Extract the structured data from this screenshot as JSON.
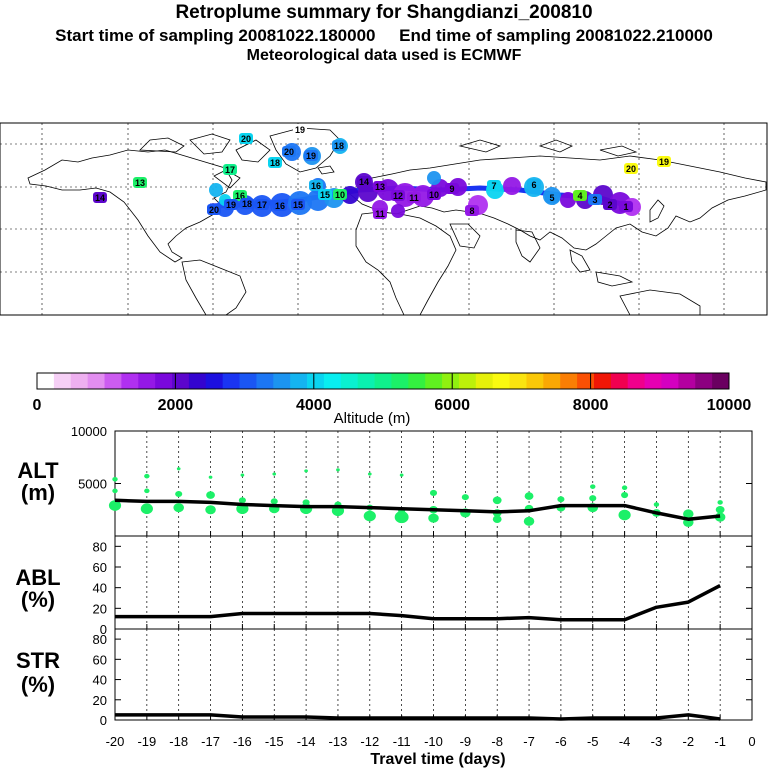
{
  "header": {
    "title": "Retroplume summary for Shangdianzi_200810",
    "sampling_line": "Start time of sampling 20081022.180000     End time of sampling 20081022.210000",
    "met_line": "Meteorological data used is ECMWF"
  },
  "colorbar": {
    "label": "Altitude (m)",
    "ticks": [
      "0",
      "2000",
      "4000",
      "6000",
      "8000",
      "10000"
    ],
    "colors": [
      "#ffffff",
      "#f6d0f6",
      "#eeb0f0",
      "#e28ef0",
      "#cc5cf0",
      "#b030f0",
      "#9418e6",
      "#7a08dc",
      "#5c06cc",
      "#3404d0",
      "#1c10e0",
      "#1a34f2",
      "#1a56f4",
      "#1c76f4",
      "#1c94f0",
      "#14b4f0",
      "#0ad4f0",
      "#08eef0",
      "#0af0d0",
      "#0af0b0",
      "#10f08c",
      "#1cf068",
      "#34f040",
      "#60f020",
      "#90f010",
      "#bcf00a",
      "#e6f00a",
      "#fafa10",
      "#fae410",
      "#fac808",
      "#faa804",
      "#fa7e04",
      "#fa5004",
      "#f01606",
      "#f00050",
      "#f0008c",
      "#e600b2",
      "#d400c0",
      "#b400a0",
      "#8c0080",
      "#6a0060"
    ]
  },
  "map": {
    "labels": [
      {
        "t": "20",
        "c": "#0ad4f0"
      },
      {
        "t": "19",
        "c": "#ffffff"
      },
      {
        "t": "18",
        "c": "#0ad4f0"
      },
      {
        "t": "17",
        "c": "#10f08c"
      },
      {
        "t": "16",
        "c": "#1cf068"
      },
      {
        "t": "20",
        "c": "#1a56f4"
      },
      {
        "t": "19",
        "c": "#1a56f4"
      },
      {
        "t": "18",
        "c": "#1a56f4"
      },
      {
        "t": "17",
        "c": "#1a56f4"
      },
      {
        "t": "16",
        "c": "#1a56f4"
      },
      {
        "t": "15",
        "c": "#1a56f4"
      },
      {
        "t": "20",
        "c": "#1c76f4"
      },
      {
        "t": "19",
        "c": "#1c76f4"
      },
      {
        "t": "18",
        "c": "#1c94f0"
      },
      {
        "t": "16",
        "c": "#14b4f0"
      },
      {
        "t": "15",
        "c": "#0ad4f0"
      },
      {
        "t": "14",
        "c": "#5c06cc"
      },
      {
        "t": "13",
        "c": "#7a08dc"
      },
      {
        "t": "12",
        "c": "#7a08dc"
      },
      {
        "t": "11",
        "c": "#9418e6"
      },
      {
        "t": "10",
        "c": "#7a08dc"
      },
      {
        "t": "9",
        "c": "#7a08dc"
      },
      {
        "t": "8",
        "c": "#9418e6"
      },
      {
        "t": "7",
        "c": "#0ad4f0"
      },
      {
        "t": "6",
        "c": "#14b4f0"
      },
      {
        "t": "5",
        "c": "#1c94f0"
      },
      {
        "t": "4",
        "c": "#60f020"
      },
      {
        "t": "3",
        "c": "#1c76f4"
      },
      {
        "t": "2",
        "c": "#5c06cc"
      },
      {
        "t": "1",
        "c": "#7a08dc"
      },
      {
        "t": "20",
        "c": "#fafa10"
      },
      {
        "t": "19",
        "c": "#fafa10"
      },
      {
        "t": "10",
        "c": "#1cf068"
      },
      {
        "t": "11",
        "c": "#9418e6"
      },
      {
        "t": "13",
        "c": "#1cf068"
      },
      {
        "t": "14",
        "c": "#5c06cc"
      }
    ]
  },
  "chart_data": [
    {
      "type": "line",
      "panel": "ALT",
      "ylabel": "ALT\n(m)",
      "ylim": [
        0,
        10000
      ],
      "yticks": [
        "10000",
        "5000"
      ],
      "x": [
        -20,
        -19,
        -18,
        -17,
        -16,
        -15,
        -14,
        -13,
        -12,
        -11,
        -10,
        -9,
        -8,
        -7,
        -6,
        -5,
        -4,
        -3,
        -2,
        -1
      ],
      "series": [
        {
          "name": "mean altitude",
          "values": [
            3400,
            3300,
            3300,
            3200,
            3000,
            2900,
            2800,
            2800,
            2700,
            2600,
            2500,
            2400,
            2300,
            2400,
            2900,
            2900,
            2900,
            2200,
            1600,
            1900
          ]
        }
      ],
      "scatter": [
        {
          "x": -20,
          "y": 5400,
          "s": 2
        },
        {
          "x": -20,
          "y": 4300,
          "s": 2
        },
        {
          "x": -20,
          "y": 2900,
          "s": 6
        },
        {
          "x": -19,
          "y": 5700,
          "s": 2
        },
        {
          "x": -19,
          "y": 4300,
          "s": 2
        },
        {
          "x": -19,
          "y": 2600,
          "s": 6
        },
        {
          "x": -18,
          "y": 6400,
          "s": 1
        },
        {
          "x": -18,
          "y": 4000,
          "s": 3
        },
        {
          "x": -18,
          "y": 2700,
          "s": 5
        },
        {
          "x": -17,
          "y": 5600,
          "s": 1
        },
        {
          "x": -17,
          "y": 3900,
          "s": 4
        },
        {
          "x": -17,
          "y": 2500,
          "s": 5
        },
        {
          "x": -16,
          "y": 5800,
          "s": 1
        },
        {
          "x": -16,
          "y": 3400,
          "s": 3
        },
        {
          "x": -16,
          "y": 2600,
          "s": 6
        },
        {
          "x": -15,
          "y": 5900,
          "s": 1
        },
        {
          "x": -15,
          "y": 3300,
          "s": 3
        },
        {
          "x": -15,
          "y": 2600,
          "s": 5
        },
        {
          "x": -14,
          "y": 6200,
          "s": 1
        },
        {
          "x": -14,
          "y": 3200,
          "s": 3
        },
        {
          "x": -14,
          "y": 2600,
          "s": 6
        },
        {
          "x": -13,
          "y": 6300,
          "s": 1
        },
        {
          "x": -13,
          "y": 3000,
          "s": 3
        },
        {
          "x": -13,
          "y": 2400,
          "s": 6
        },
        {
          "x": -12,
          "y": 5900,
          "s": 1
        },
        {
          "x": -12,
          "y": 2700,
          "s": 3
        },
        {
          "x": -12,
          "y": 1900,
          "s": 6
        },
        {
          "x": -11,
          "y": 5800,
          "s": 1
        },
        {
          "x": -11,
          "y": 2400,
          "s": 3
        },
        {
          "x": -11,
          "y": 1800,
          "s": 7
        },
        {
          "x": -10,
          "y": 4100,
          "s": 3
        },
        {
          "x": -10,
          "y": 2500,
          "s": 4
        },
        {
          "x": -10,
          "y": 1700,
          "s": 5
        },
        {
          "x": -9,
          "y": 3700,
          "s": 3
        },
        {
          "x": -9,
          "y": 2200,
          "s": 5
        },
        {
          "x": -8,
          "y": 3400,
          "s": 4
        },
        {
          "x": -8,
          "y": 2200,
          "s": 4
        },
        {
          "x": -8,
          "y": 1600,
          "s": 4
        },
        {
          "x": -7,
          "y": 3800,
          "s": 4
        },
        {
          "x": -7,
          "y": 2600,
          "s": 4
        },
        {
          "x": -7,
          "y": 1400,
          "s": 5
        },
        {
          "x": -6,
          "y": 3500,
          "s": 3
        },
        {
          "x": -6,
          "y": 2700,
          "s": 4
        },
        {
          "x": -5,
          "y": 4700,
          "s": 2
        },
        {
          "x": -5,
          "y": 3600,
          "s": 3
        },
        {
          "x": -5,
          "y": 2700,
          "s": 5
        },
        {
          "x": -4,
          "y": 4600,
          "s": 2
        },
        {
          "x": -4,
          "y": 3900,
          "s": 3
        },
        {
          "x": -4,
          "y": 2000,
          "s": 6
        },
        {
          "x": -3,
          "y": 3000,
          "s": 2
        },
        {
          "x": -3,
          "y": 2200,
          "s": 4
        },
        {
          "x": -2,
          "y": 2100,
          "s": 5
        },
        {
          "x": -2,
          "y": 1300,
          "s": 5
        },
        {
          "x": -1,
          "y": 3200,
          "s": 2
        },
        {
          "x": -1,
          "y": 2500,
          "s": 4
        },
        {
          "x": -1,
          "y": 1800,
          "s": 5
        }
      ]
    },
    {
      "type": "line",
      "panel": "ABL",
      "ylabel": "ABL\n(%)",
      "ylim": [
        0,
        90
      ],
      "yticks": [
        "0",
        "20",
        "40",
        "60",
        "80"
      ],
      "x": [
        -20,
        -19,
        -18,
        -17,
        -16,
        -15,
        -14,
        -13,
        -12,
        -11,
        -10,
        -9,
        -8,
        -7,
        -6,
        -5,
        -4,
        -3,
        -2,
        -1
      ],
      "series": [
        {
          "name": "ABL fraction",
          "values": [
            12,
            12,
            12,
            12,
            15,
            15,
            15,
            15,
            15,
            13,
            10,
            10,
            10,
            11,
            9,
            9,
            9,
            21,
            26,
            42
          ]
        }
      ]
    },
    {
      "type": "line",
      "panel": "STR",
      "ylabel": "STR\n(%)",
      "ylim": [
        0,
        90
      ],
      "yticks": [
        "0",
        "20",
        "40",
        "60",
        "80"
      ],
      "xlabel": "Travel time (days)",
      "xticks": [
        "-20",
        "-19",
        "-18",
        "-17",
        "-16",
        "-15",
        "-14",
        "-13",
        "-12",
        "-11",
        "-10",
        "-9",
        "-8",
        "-7",
        "-6",
        "-5",
        "-4",
        "-3",
        "-2",
        "-1",
        "0"
      ],
      "x": [
        -20,
        -19,
        -18,
        -17,
        -16,
        -15,
        -14,
        -13,
        -12,
        -11,
        -10,
        -9,
        -8,
        -7,
        -6,
        -5,
        -4,
        -3,
        -2,
        -1
      ],
      "series": [
        {
          "name": "stratospheric fraction",
          "values": [
            5,
            5,
            5,
            5,
            3,
            3,
            3,
            2,
            2,
            2,
            2,
            2,
            2,
            2,
            1,
            2,
            2,
            2,
            5,
            1
          ]
        }
      ]
    }
  ]
}
